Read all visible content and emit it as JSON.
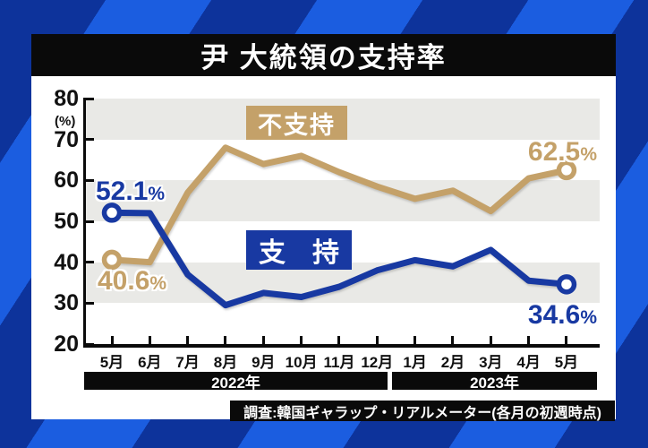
{
  "title": "尹 大統領の支持率",
  "colors": {
    "approval_blue": "#1839a2",
    "disapproval_tan": "#c4a169",
    "band_gray": "#e9e9e6",
    "bar_black": "#0a0a0a",
    "bg_bright_blue": "#1b5de0",
    "bg_dark_blue": "#0d339b"
  },
  "y_axis": {
    "unit": "(%)",
    "ticks": [
      80,
      70,
      60,
      50,
      40,
      30,
      20
    ]
  },
  "x_axis": {
    "years": [
      {
        "label": "2022年"
      },
      {
        "label": "2023年"
      }
    ]
  },
  "chart_data": {
    "type": "line",
    "categories": [
      "5月",
      "6月",
      "7月",
      "8月",
      "9月",
      "10月",
      "11月",
      "12月",
      "1月",
      "2月",
      "3月",
      "4月",
      "5月"
    ],
    "series": [
      {
        "name": "不支持",
        "color": "#c4a169",
        "values": [
          40.6,
          40,
          57,
          68,
          64,
          66,
          62,
          58.5,
          55.5,
          57.5,
          52.5,
          60.5,
          62.5
        ]
      },
      {
        "name": "支持",
        "color": "#1839a2",
        "values": [
          52.1,
          52,
          37,
          29.5,
          32.5,
          31.5,
          34,
          38,
          40.5,
          39,
          43,
          35.5,
          34.6
        ]
      }
    ],
    "ylim": [
      20,
      80
    ],
    "grid_bands": [
      [
        80,
        70
      ],
      [
        60,
        50
      ],
      [
        40,
        30
      ]
    ],
    "title": "尹 大統領の支持率",
    "legend_position": "inside-plot",
    "markers": "open-circle endpoints"
  },
  "annotations": [
    {
      "value": "52.1",
      "unit": "%",
      "series": "支持",
      "position": "start"
    },
    {
      "value": "40.6",
      "unit": "%",
      "series": "不支持",
      "position": "start"
    },
    {
      "value": "62.5",
      "unit": "%",
      "series": "不支持",
      "position": "end"
    },
    {
      "value": "34.6",
      "unit": "%",
      "series": "支持",
      "position": "end"
    }
  ],
  "footer": {
    "text": "調査:韓国ギャラップ・リアルメーター(各月の初週時点)"
  }
}
